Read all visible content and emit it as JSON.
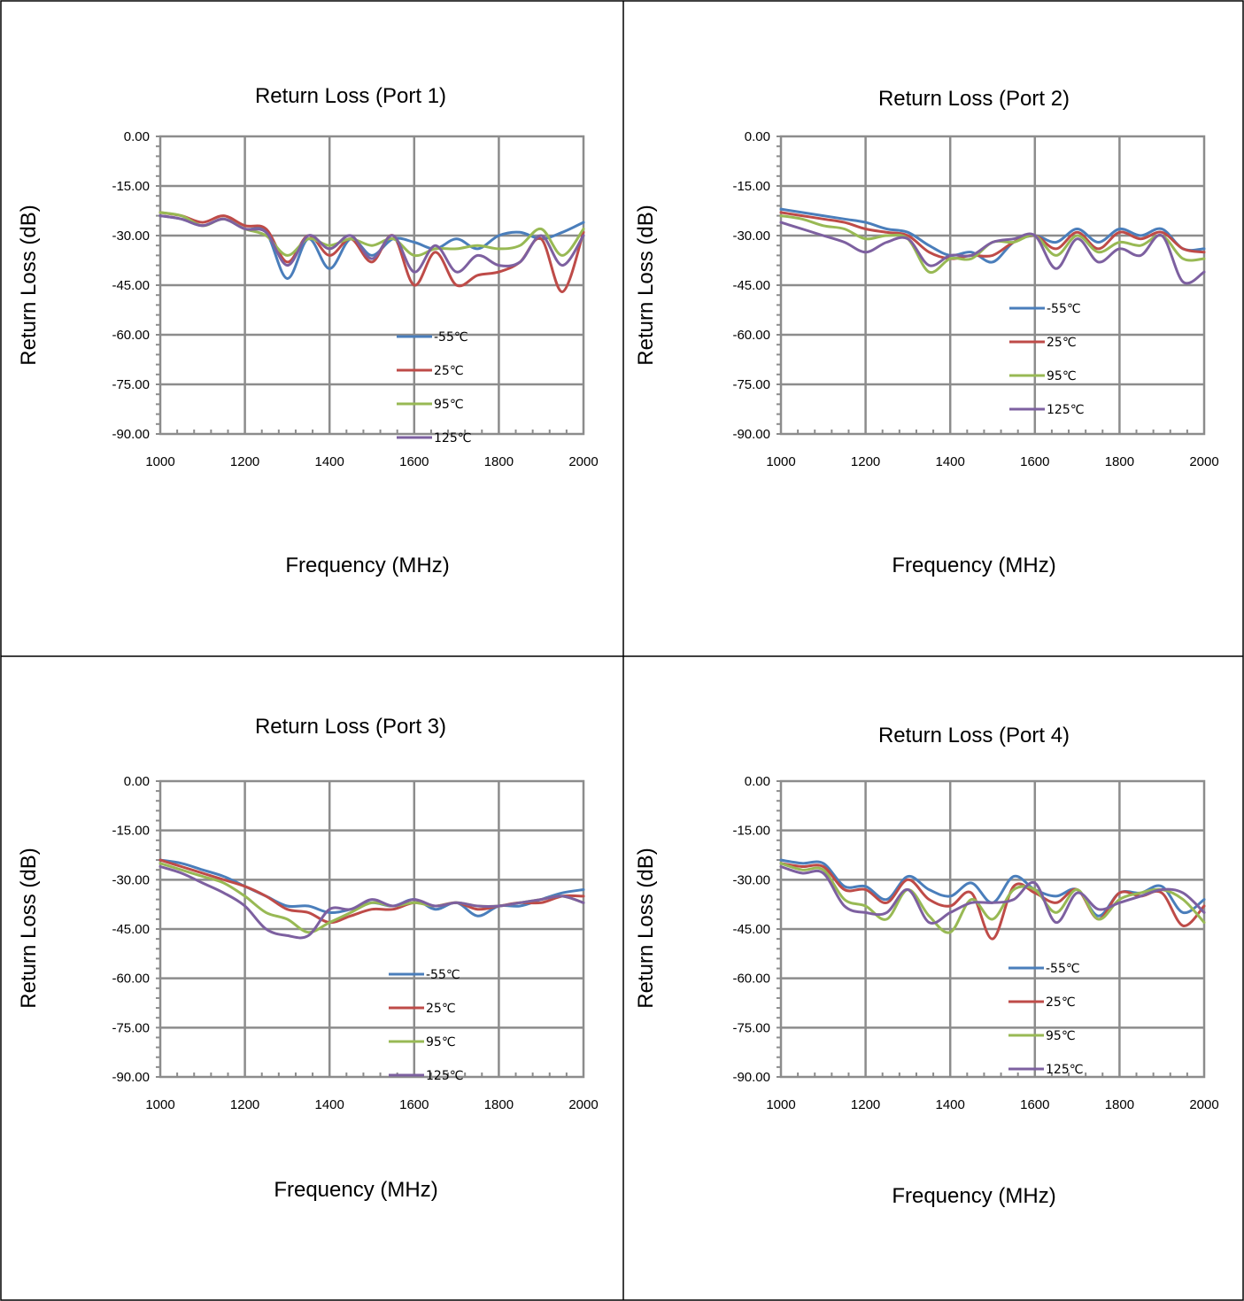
{
  "colors": {
    "-55": "#4a7ebb",
    "25": "#be4b48",
    "95": "#98b954",
    "125": "#7d60a0",
    "grid": "#8c8c8c",
    "border": "#000000"
  },
  "chart_data": [
    {
      "type": "line",
      "title": "Return Loss (Port 1)",
      "xlabel": "Frequency (MHz)",
      "ylabel": "Return Loss (dB)",
      "xlim": [
        1000,
        2000
      ],
      "ylim": [
        -90,
        0
      ],
      "xticks": [
        "1000",
        "1200",
        "1400",
        "1600",
        "1800",
        "2000"
      ],
      "yticks": [
        "0.00",
        "-15.00",
        "-30.00",
        "-45.00",
        "-60.00",
        "-75.00",
        "-90.00"
      ],
      "grid": true,
      "legend_position": "lower-right",
      "x": [
        1000,
        1050,
        1100,
        1150,
        1200,
        1250,
        1300,
        1350,
        1400,
        1450,
        1500,
        1550,
        1600,
        1650,
        1700,
        1750,
        1800,
        1850,
        1900,
        1950,
        2000
      ],
      "series": [
        {
          "name": "-55℃",
          "color": "#4a7ebb",
          "values": [
            -24,
            -25,
            -27,
            -25,
            -28,
            -29,
            -43,
            -31,
            -40,
            -31,
            -36,
            -31,
            -32,
            -34,
            -31,
            -34,
            -30,
            -29,
            -31,
            -29,
            -26
          ]
        },
        {
          "name": "25℃",
          "color": "#be4b48",
          "values": [
            -23,
            -24,
            -26,
            -24,
            -27,
            -28,
            -38,
            -30,
            -36,
            -31,
            -38,
            -30,
            -45,
            -35,
            -45,
            -42,
            -41,
            -38,
            -31,
            -47,
            -29
          ]
        },
        {
          "name": "95℃",
          "color": "#98b954",
          "values": [
            -23,
            -24,
            -27,
            -25,
            -28,
            -30,
            -36,
            -31,
            -33,
            -31,
            -33,
            -31,
            -36,
            -34,
            -34,
            -33,
            -34,
            -33,
            -28,
            -36,
            -28
          ]
        },
        {
          "name": "125℃",
          "color": "#7d60a0",
          "values": [
            -24,
            -25,
            -27,
            -25,
            -28,
            -29,
            -39,
            -30,
            -34,
            -30,
            -37,
            -30,
            -41,
            -33,
            -41,
            -36,
            -39,
            -38,
            -30,
            -39,
            -30
          ]
        }
      ]
    },
    {
      "type": "line",
      "title": "Return Loss (Port 2)",
      "xlabel": "Frequency (MHz)",
      "ylabel": "Return Loss (dB)",
      "xlim": [
        1000,
        2000
      ],
      "ylim": [
        -90,
        0
      ],
      "xticks": [
        "1000",
        "1200",
        "1400",
        "1600",
        "1800",
        "2000"
      ],
      "yticks": [
        "0.00",
        "-15.00",
        "-30.00",
        "-45.00",
        "-60.00",
        "-75.00",
        "-90.00"
      ],
      "grid": true,
      "legend_position": "lower-right",
      "x": [
        1000,
        1050,
        1100,
        1150,
        1200,
        1250,
        1300,
        1350,
        1400,
        1450,
        1500,
        1550,
        1600,
        1650,
        1700,
        1750,
        1800,
        1850,
        1900,
        1950,
        2000
      ],
      "series": [
        {
          "name": "-55℃",
          "color": "#4a7ebb",
          "values": [
            -22,
            -23,
            -24,
            -25,
            -26,
            -28,
            -29,
            -33,
            -36,
            -35,
            -38,
            -32,
            -30,
            -32,
            -28,
            -32,
            -28,
            -30,
            -28,
            -34,
            -34
          ]
        },
        {
          "name": "25℃",
          "color": "#be4b48",
          "values": [
            -23,
            -24,
            -25,
            -26,
            -28,
            -29,
            -30,
            -35,
            -37,
            -36,
            -36,
            -32,
            -30,
            -34,
            -29,
            -34,
            -29,
            -31,
            -29,
            -34,
            -35
          ]
        },
        {
          "name": "95℃",
          "color": "#98b954",
          "values": [
            -24,
            -25,
            -27,
            -28,
            -31,
            -30,
            -31,
            -41,
            -37,
            -37,
            -32,
            -32,
            -30,
            -36,
            -30,
            -35,
            -32,
            -33,
            -30,
            -37,
            -37
          ]
        },
        {
          "name": "125℃",
          "color": "#7d60a0",
          "values": [
            -26,
            -28,
            -30,
            -32,
            -35,
            -32,
            -31,
            -39,
            -36,
            -36,
            -32,
            -31,
            -30,
            -40,
            -31,
            -38,
            -34,
            -36,
            -30,
            -44,
            -41
          ]
        }
      ]
    },
    {
      "type": "line",
      "title": "Return Loss (Port 3)",
      "xlabel": "Frequency (MHz)",
      "ylabel": "Return Loss (dB)",
      "xlim": [
        1000,
        2000
      ],
      "ylim": [
        -90,
        0
      ],
      "xticks": [
        "1000",
        "1200",
        "1400",
        "1600",
        "1800",
        "2000"
      ],
      "yticks": [
        "0.00",
        "-15.00",
        "-30.00",
        "-45.00",
        "-60.00",
        "-75.00",
        "-90.00"
      ],
      "grid": true,
      "legend_position": "lower-right",
      "x": [
        1000,
        1050,
        1100,
        1150,
        1200,
        1250,
        1300,
        1350,
        1400,
        1450,
        1500,
        1550,
        1600,
        1650,
        1700,
        1750,
        1800,
        1850,
        1900,
        1950,
        2000
      ],
      "series": [
        {
          "name": "-55℃",
          "color": "#4a7ebb",
          "values": [
            -24,
            -25,
            -27,
            -29,
            -32,
            -35,
            -38,
            -38,
            -40,
            -39,
            -37,
            -38,
            -36,
            -39,
            -37,
            -41,
            -38,
            -38,
            -36,
            -34,
            -33
          ]
        },
        {
          "name": "25℃",
          "color": "#be4b48",
          "values": [
            -24,
            -26,
            -28,
            -30,
            -32,
            -35,
            -39,
            -40,
            -43,
            -41,
            -39,
            -39,
            -37,
            -38,
            -37,
            -39,
            -38,
            -37,
            -37,
            -35,
            -35
          ]
        },
        {
          "name": "95℃",
          "color": "#98b954",
          "values": [
            -25,
            -27,
            -29,
            -31,
            -35,
            -40,
            -42,
            -46,
            -43,
            -40,
            -37,
            -38,
            -37,
            -38,
            -37,
            -38,
            -38,
            -37,
            -36,
            -35,
            -37
          ]
        },
        {
          "name": "125℃",
          "color": "#7d60a0",
          "values": [
            -26,
            -28,
            -31,
            -34,
            -38,
            -45,
            -47,
            -47,
            -39,
            -39,
            -36,
            -38,
            -36,
            -38,
            -37,
            -38,
            -38,
            -37,
            -36,
            -35,
            -37
          ]
        }
      ]
    },
    {
      "type": "line",
      "title": "Return Loss (Port 4)",
      "xlabel": "Frequency (MHz)",
      "ylabel": "Return Loss (dB)",
      "xlim": [
        1000,
        2000
      ],
      "ylim": [
        -90,
        0
      ],
      "xticks": [
        "1000",
        "1200",
        "1400",
        "1600",
        "1800",
        "2000"
      ],
      "yticks": [
        "0.00",
        "-15.00",
        "-30.00",
        "-45.00",
        "-60.00",
        "-75.00",
        "-90.00"
      ],
      "grid": true,
      "legend_position": "lower-right",
      "x": [
        1000,
        1050,
        1100,
        1150,
        1200,
        1250,
        1300,
        1350,
        1400,
        1450,
        1500,
        1550,
        1600,
        1650,
        1700,
        1750,
        1800,
        1850,
        1900,
        1950,
        2000
      ],
      "series": [
        {
          "name": "-55℃",
          "color": "#4a7ebb",
          "values": [
            -24,
            -25,
            -25,
            -32,
            -32,
            -36,
            -29,
            -33,
            -35,
            -31,
            -37,
            -29,
            -33,
            -35,
            -33,
            -41,
            -34,
            -34,
            -32,
            -40,
            -36
          ]
        },
        {
          "name": "25℃",
          "color": "#be4b48",
          "values": [
            -25,
            -26,
            -26,
            -33,
            -33,
            -37,
            -30,
            -36,
            -38,
            -34,
            -48,
            -32,
            -34,
            -37,
            -33,
            -42,
            -34,
            -35,
            -34,
            -44,
            -38
          ]
        },
        {
          "name": "95℃",
          "color": "#98b954",
          "values": [
            -25,
            -27,
            -27,
            -36,
            -38,
            -42,
            -33,
            -41,
            -46,
            -36,
            -42,
            -33,
            -33,
            -40,
            -33,
            -42,
            -36,
            -34,
            -33,
            -36,
            -43
          ]
        },
        {
          "name": "125℃",
          "color": "#7d60a0",
          "values": [
            -26,
            -28,
            -28,
            -38,
            -40,
            -40,
            -33,
            -43,
            -40,
            -37,
            -37,
            -36,
            -31,
            -43,
            -34,
            -39,
            -37,
            -35,
            -33,
            -34,
            -40
          ]
        }
      ]
    }
  ]
}
